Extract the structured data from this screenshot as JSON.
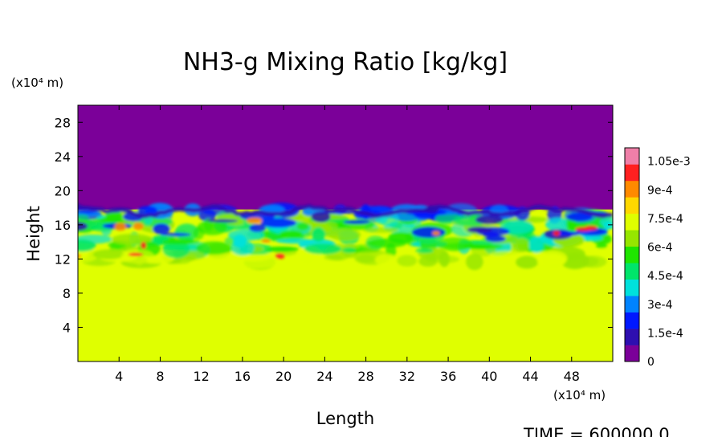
{
  "chart_data": {
    "type": "heatmap",
    "title": "NH3-g Mixing Ratio [kg/kg]",
    "xlabel": "Length",
    "ylabel": "Height",
    "x_unit": "(x10⁴ m)",
    "y_unit": "(x10⁴ m)",
    "xlim": [
      0,
      52
    ],
    "ylim": [
      0,
      30
    ],
    "x_ticks": [
      4,
      8,
      12,
      16,
      20,
      24,
      28,
      32,
      36,
      40,
      44,
      48
    ],
    "y_ticks": [
      4,
      8,
      12,
      16,
      20,
      24,
      28
    ],
    "colorbar": {
      "range": [
        0,
        0.00112
      ],
      "tick_values": [
        0,
        0.00015,
        0.0003,
        0.00045,
        0.0006,
        0.00075,
        0.0009,
        0.00105
      ],
      "tick_labels": [
        "0",
        "1.5e-4",
        "3e-4",
        "4.5e-4",
        "6e-4",
        "7.5e-4",
        "9e-4",
        "1.05e-3"
      ],
      "colors": [
        "#7b0099",
        "#2e0fb0",
        "#0018ff",
        "#0083ff",
        "#00e1dc",
        "#00e56a",
        "#1fe600",
        "#96e600",
        "#dfff00",
        "#ffd800",
        "#ff8a00",
        "#ff2020",
        "#ef7fa8"
      ]
    },
    "regions": {
      "upper_value": 0,
      "lower_value": 0.00076,
      "interface_height": 17.8,
      "mixing_layer_bottom": 11.5
    },
    "footer": "TIME = 600000.0"
  }
}
